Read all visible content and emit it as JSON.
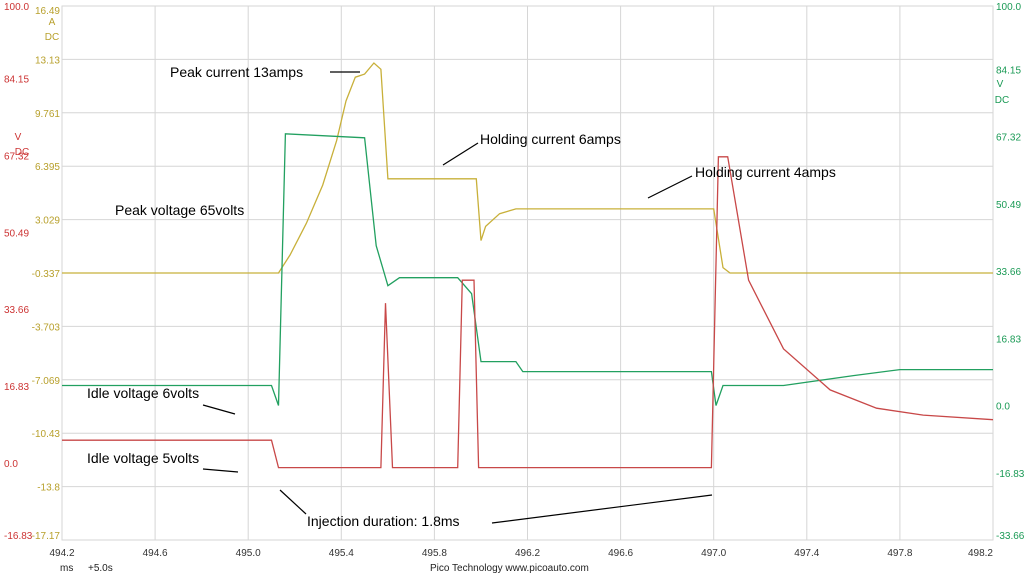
{
  "chart_data": {
    "type": "line",
    "title": "",
    "xlabel": "",
    "xlim": [
      494.2,
      498.2
    ],
    "x_ticks": [
      "494.2",
      "494.6",
      "495.0",
      "495.4",
      "495.8",
      "496.2",
      "496.6",
      "497.0",
      "497.4",
      "497.8",
      "498.2"
    ],
    "grid": true,
    "axes": {
      "current": {
        "unit_top": "A",
        "unit_bottom": "DC",
        "color": "#b8a02c",
        "ylim": [
          -17.17,
          16.49
        ],
        "ticks": [
          "16.49",
          "13.13",
          "9.761",
          "6.395",
          "3.029",
          "-0.337",
          "-3.703",
          "-7.069",
          "-10.43",
          "-13.8",
          "-17.17"
        ]
      },
      "voltage_left": {
        "unit_top": "V",
        "unit_bottom": "DC",
        "color": "#cc3333",
        "ylim": [
          -16.83,
          100.0
        ],
        "ticks": [
          "100.0",
          "84.15",
          "67.32",
          "50.49",
          "33.66",
          "16.83",
          "0.0",
          "-16.83"
        ]
      },
      "voltage_right": {
        "unit_top": "V",
        "unit_bottom": "DC",
        "color": "#1a9a55",
        "ylim": [
          -33.66,
          100.0
        ],
        "ticks": [
          "100.0",
          "84.15",
          "67.32",
          "50.49",
          "33.66",
          "16.83",
          "0.0",
          "-16.83",
          "-33.66"
        ]
      }
    },
    "series": [
      {
        "color": "#c8b03a",
        "axis": "current",
        "points": [
          [
            494.2,
            -0.34
          ],
          [
            495.13,
            -0.34
          ],
          [
            495.18,
            0.8
          ],
          [
            495.25,
            2.8
          ],
          [
            495.32,
            5.2
          ],
          [
            495.38,
            8.0
          ],
          [
            495.42,
            10.5
          ],
          [
            495.46,
            12.0
          ],
          [
            495.5,
            12.2
          ],
          [
            495.54,
            12.9
          ],
          [
            495.57,
            12.5
          ],
          [
            495.6,
            5.6
          ],
          [
            495.98,
            5.6
          ],
          [
            496.0,
            1.7
          ],
          [
            496.02,
            2.6
          ],
          [
            496.08,
            3.4
          ],
          [
            496.15,
            3.7
          ],
          [
            497.0,
            3.7
          ],
          [
            497.04,
            0.0
          ],
          [
            497.07,
            -0.34
          ],
          [
            498.2,
            -0.34
          ]
        ]
      },
      {
        "color": "#22a060",
        "axis": "voltage_right",
        "points": [
          [
            494.2,
            5.0
          ],
          [
            495.1,
            5.0
          ],
          [
            495.13,
            0.0
          ],
          [
            495.16,
            68.0
          ],
          [
            495.5,
            67.0
          ],
          [
            495.55,
            40.0
          ],
          [
            495.6,
            30.0
          ],
          [
            495.65,
            32.0
          ],
          [
            495.9,
            32.0
          ],
          [
            495.96,
            28.0
          ],
          [
            496.0,
            11.0
          ],
          [
            496.15,
            11.0
          ],
          [
            496.18,
            8.5
          ],
          [
            496.99,
            8.5
          ],
          [
            497.01,
            0.0
          ],
          [
            497.04,
            5.0
          ],
          [
            497.3,
            5.0
          ],
          [
            497.6,
            7.5
          ],
          [
            497.8,
            9.0
          ],
          [
            498.2,
            9.0
          ]
        ]
      },
      {
        "color": "#c84848",
        "axis": "voltage_left",
        "points": [
          [
            494.2,
            5.0
          ],
          [
            495.1,
            5.0
          ],
          [
            495.13,
            -1.0
          ],
          [
            495.57,
            -1.0
          ],
          [
            495.59,
            35.0
          ],
          [
            495.62,
            -1.0
          ],
          [
            495.9,
            -1.0
          ],
          [
            495.92,
            40.0
          ],
          [
            495.97,
            40.0
          ],
          [
            495.99,
            -1.0
          ],
          [
            496.99,
            -1.0
          ],
          [
            497.02,
            67.0
          ],
          [
            497.06,
            67.0
          ],
          [
            497.15,
            40.0
          ],
          [
            497.3,
            25.0
          ],
          [
            497.5,
            16.0
          ],
          [
            497.7,
            12.0
          ],
          [
            497.9,
            10.5
          ],
          [
            498.2,
            9.5
          ]
        ]
      }
    ],
    "annotations": [
      {
        "text": "Peak current 13amps"
      },
      {
        "text": "Holding current 6amps"
      },
      {
        "text": "Holding current 4amps"
      },
      {
        "text": "Peak voltage 65volts"
      },
      {
        "text": "Idle voltage 6volts"
      },
      {
        "text": "Idle voltage 5volts"
      },
      {
        "text": "Injection duration: 1.8ms"
      }
    ]
  },
  "footer": {
    "units": "ms",
    "timebase": "+5.0s",
    "brand": "Pico Technology   www.picoauto.com"
  }
}
